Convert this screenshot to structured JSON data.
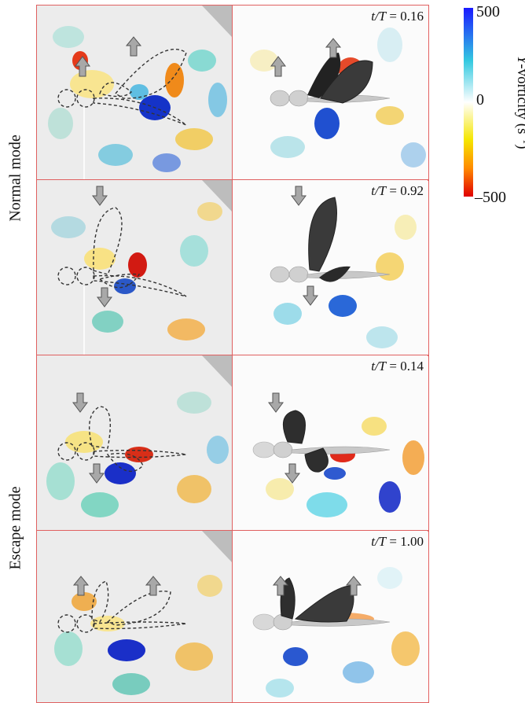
{
  "figure": {
    "row_labels": [
      "Normal mode",
      "Escape mode"
    ],
    "panels": [
      {
        "row": 1,
        "time_label": "t/T = 0.16",
        "time_var": "t/T",
        "time_value": "0.16",
        "arrows": [
          "up",
          "up"
        ]
      },
      {
        "row": 2,
        "time_label": "t/T = 0.92",
        "time_var": "t/T",
        "time_value": "0.92",
        "arrows": [
          "down",
          "down"
        ]
      },
      {
        "row": 3,
        "time_label": "t/T = 0.14",
        "time_var": "t/T",
        "time_value": "0.14",
        "arrows": [
          "down",
          "down"
        ]
      },
      {
        "row": 4,
        "time_label": "t/T = 1.00",
        "time_var": "t/T",
        "time_value": "1.00",
        "arrows": [
          "up",
          "up"
        ]
      }
    ],
    "colorbar": {
      "max_label": "500",
      "mid_label": "0",
      "min_label": "–500",
      "title_var": "Y",
      "title_rest": "-vorticity (s",
      "title_exp": "−1",
      "title_close": ")",
      "colors": [
        "#1a1aff",
        "#33c9e0",
        "#ffffff",
        "#f5e600",
        "#ff8a00",
        "#e00000"
      ]
    },
    "colors": {
      "frame": "#e06060",
      "body": "#c8c8c8",
      "wing": "#333333",
      "arrow": "#999999"
    }
  }
}
